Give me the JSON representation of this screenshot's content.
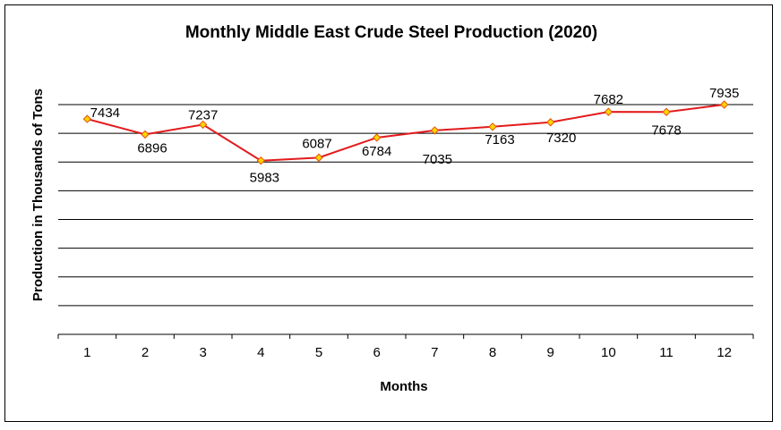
{
  "chart_data": {
    "type": "line",
    "title": "Monthly Middle East Crude Steel Production (2020)",
    "xlabel": "Months",
    "ylabel": "Production in Thousands of Tons",
    "categories": [
      "1",
      "2",
      "3",
      "4",
      "5",
      "6",
      "7",
      "8",
      "9",
      "10",
      "11",
      "12"
    ],
    "series": [
      {
        "values": [
          7434,
          6896,
          7237,
          5983,
          6087,
          6784,
          7035,
          7163,
          7320,
          7682,
          7678,
          7935
        ],
        "data_labels": [
          "7434",
          "6896",
          "7237",
          "5983",
          "6087",
          "6784",
          "7035",
          "7163",
          "7320",
          "7682",
          "7678",
          "7935"
        ],
        "line_color": "#e31a1c",
        "marker_fill": "#ffd400",
        "marker_stroke": "#e0520a"
      }
    ],
    "ylim": [
      0,
      8000
    ],
    "ystep": 1000,
    "y_tick_labels_shown": false,
    "grid": true,
    "grid_color": "#000000",
    "legend": "none"
  }
}
